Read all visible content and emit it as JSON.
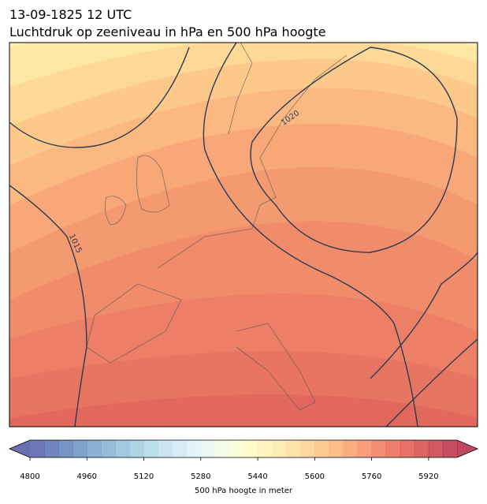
{
  "title": "13-09-1825 12 UTC",
  "subtitle": "Luchtdruk op zeeniveau in hPa en 500 hPa hoogte",
  "isobar_labels": [
    "1020",
    "1015"
  ],
  "colorbar": {
    "label": "500 hPa hoogte in meter",
    "lim": [
      4800,
      6000
    ],
    "step": 40,
    "ticks": [
      4800,
      4960,
      5120,
      5280,
      5440,
      5600,
      5760,
      5920
    ],
    "extend": "both"
  }
}
